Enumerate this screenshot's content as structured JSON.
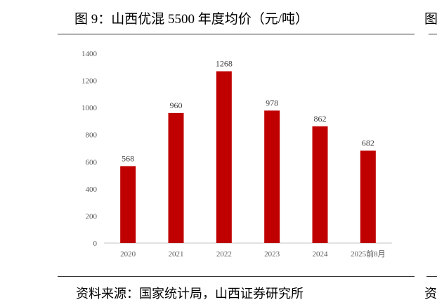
{
  "title": "图 9：山西优混 5500 年度均价（元/吨）",
  "source": "资料来源：国家统计局，山西证券研究所",
  "chart_data": {
    "type": "bar",
    "categories": [
      "2020",
      "2021",
      "2022",
      "2023",
      "2024",
      "2025前8月"
    ],
    "values": [
      568,
      960,
      1268,
      978,
      862,
      682
    ],
    "title": "",
    "xlabel": "",
    "ylabel": "",
    "ylim": [
      0,
      1400
    ],
    "yticks": [
      0,
      200,
      400,
      600,
      800,
      1000,
      1200,
      1400
    ],
    "grid": false,
    "bar_color": "#C00000",
    "data_labels": true
  }
}
